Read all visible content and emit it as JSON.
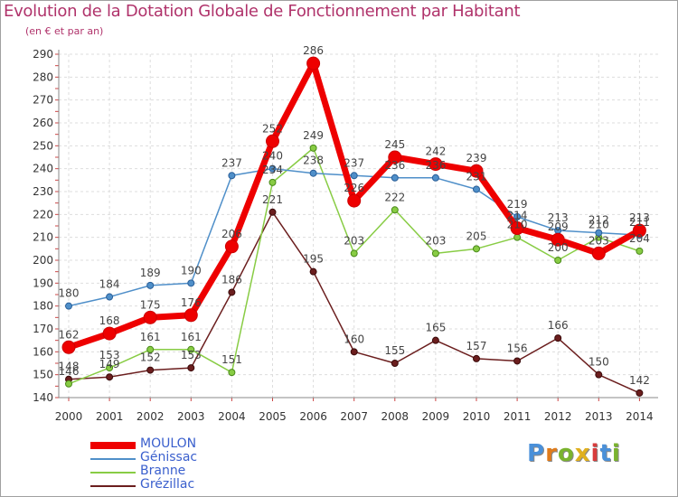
{
  "title": "Evolution de la Dotation Globale de Fonctionnement par Habitant",
  "subtitle": "(en € et par an)",
  "logo": {
    "letters": [
      "P",
      "r",
      "o",
      "x",
      "i",
      "t",
      "i"
    ],
    "colors": [
      "#4a90d9",
      "#e07b1a",
      "#7ab32e",
      "#e0b020",
      "#d83c3c",
      "#4a90d9",
      "#7ab32e"
    ]
  },
  "chart_data": {
    "type": "line",
    "title": "Evolution de la Dotation Globale de Fonctionnement par Habitant",
    "ylabel": "(en € et par an)",
    "xlabel": "",
    "categories": [
      "2000",
      "2001",
      "2002",
      "2003",
      "2004",
      "2005",
      "2006",
      "2007",
      "2008",
      "2009",
      "2010",
      "2011",
      "2012",
      "2013",
      "2014"
    ],
    "ylim": [
      140,
      290
    ],
    "yticks": [
      140,
      150,
      160,
      170,
      180,
      190,
      200,
      210,
      220,
      230,
      240,
      250,
      260,
      270,
      280,
      290
    ],
    "grid": true,
    "legend_position": "bottom-left",
    "series": [
      {
        "name": "MOULON",
        "color": "#ee0000",
        "values": [
          162,
          168,
          175,
          176,
          206,
          252,
          286,
          226,
          245,
          242,
          239,
          214,
          209,
          203,
          213
        ],
        "labels": [
          "162",
          "168",
          "175",
          "176",
          "206",
          "252",
          "286",
          "226",
          "245",
          "242",
          "239",
          "214",
          "209",
          "203",
          "213"
        ]
      },
      {
        "name": "Génissac",
        "color": "#4f8fc9",
        "values": [
          180,
          184,
          189,
          190,
          237,
          240,
          238,
          237,
          236,
          236,
          231,
          219,
          213,
          212,
          211
        ],
        "labels": [
          "180",
          "184",
          "189",
          "190",
          "237",
          "240",
          "238",
          "237",
          "236",
          "236",
          "231",
          "219",
          "213",
          "212",
          "211"
        ]
      },
      {
        "name": "Branne",
        "color": "#88cc44",
        "values": [
          146,
          153,
          161,
          161,
          151,
          234,
          249,
          203,
          222,
          203,
          205,
          210,
          200,
          210,
          204
        ],
        "labels": [
          "146",
          "153",
          "161",
          "161",
          "151",
          "234",
          "249",
          "203",
          "222",
          "203",
          "205",
          "210",
          "200",
          "210",
          "204"
        ]
      },
      {
        "name": "Grézillac",
        "color": "#6b1e1e",
        "values": [
          148,
          149,
          152,
          153,
          186,
          221,
          195,
          160,
          155,
          165,
          157,
          156,
          166,
          150,
          142
        ],
        "labels": [
          "148",
          "149",
          "152",
          "153",
          "186",
          "221",
          "195",
          "160",
          "155",
          "165",
          "157",
          "156",
          "166",
          "150",
          "142"
        ]
      }
    ]
  }
}
